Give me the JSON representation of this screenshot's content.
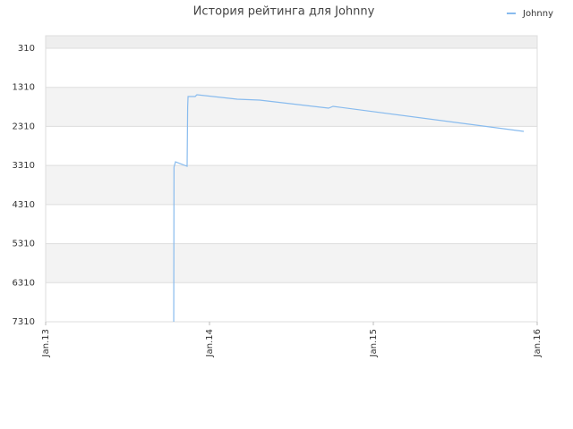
{
  "chart_data": {
    "type": "line",
    "title": "История рейтинга для Johnny",
    "series": [
      {
        "name": "Johnny",
        "color": "#88bbee",
        "x": [
          9.38,
          9.4,
          9.51,
          10.36,
          10.4,
          10.43,
          10.95,
          11.08,
          14.03,
          15.67,
          20.72,
          21.05,
          35.02
        ],
        "values": [
          7310,
          3353,
          3216,
          3330,
          1820,
          1545,
          1545,
          1500,
          1614,
          1637,
          1843,
          1797,
          2438
        ]
      }
    ],
    "xlim": [
      0,
      36
    ],
    "xticks": [
      {
        "value": 0,
        "label": "Jan.13"
      },
      {
        "value": 12,
        "label": "Jan.14"
      },
      {
        "value": 24,
        "label": "Jan.15"
      },
      {
        "value": 36,
        "label": "Jan.16"
      }
    ],
    "ylim": [
      7310,
      -10
    ],
    "yticks": [
      310,
      1310,
      2310,
      3310,
      4310,
      5310,
      6310,
      7310
    ],
    "grid": true,
    "legend": "top-right"
  }
}
